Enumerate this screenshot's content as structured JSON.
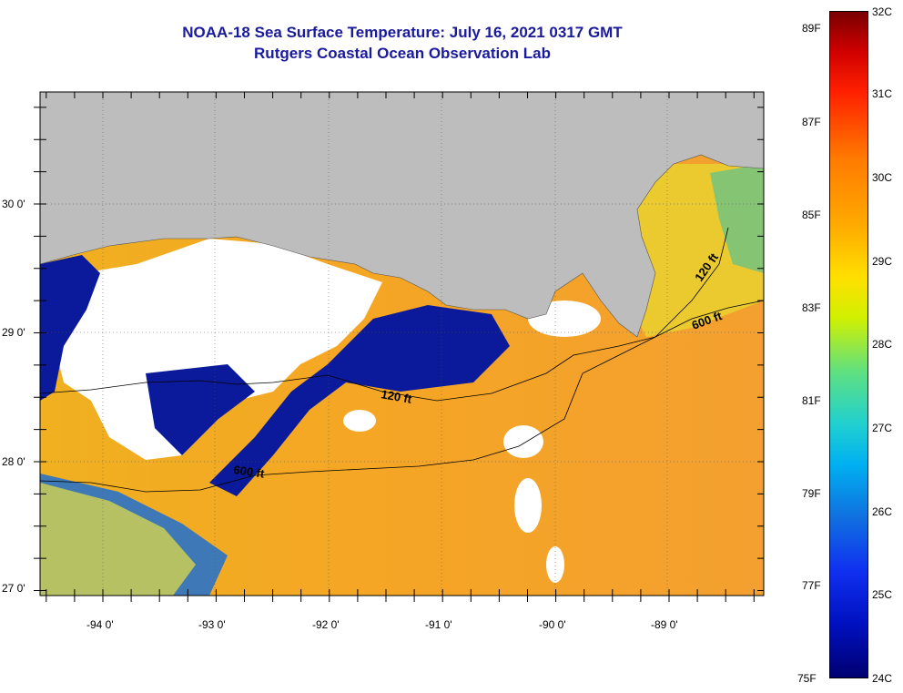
{
  "title": {
    "line1": "NOAA-18 Sea Surface Temperature:  July 16, 2021 0317 GMT",
    "line2": "Rutgers Coastal Ocean Observation Lab"
  },
  "map": {
    "lon_labels": [
      "-94 0'",
      "-93 0'",
      "-92 0'",
      "-91 0'",
      "-90 0'",
      "-89 0'"
    ],
    "lat_labels": [
      "30 0'",
      "29 0'",
      "28 0'",
      "27 0'"
    ],
    "contour_labels": [
      "120 ft",
      "600 ft",
      "600 ft",
      "120 ft"
    ],
    "colors": {
      "land": "#bdbdbd",
      "cloud": "#ffffff",
      "warm": "#f5a020",
      "cool": "#0a1a9a"
    }
  },
  "colorbar": {
    "fahrenheit_labels": [
      "89F",
      "87F",
      "85F",
      "83F",
      "81F",
      "79F",
      "77F",
      "75F"
    ],
    "celsius_labels": [
      "32C",
      "31C",
      "30C",
      "29C",
      "28C",
      "27C",
      "26C",
      "25C",
      "24C"
    ]
  }
}
